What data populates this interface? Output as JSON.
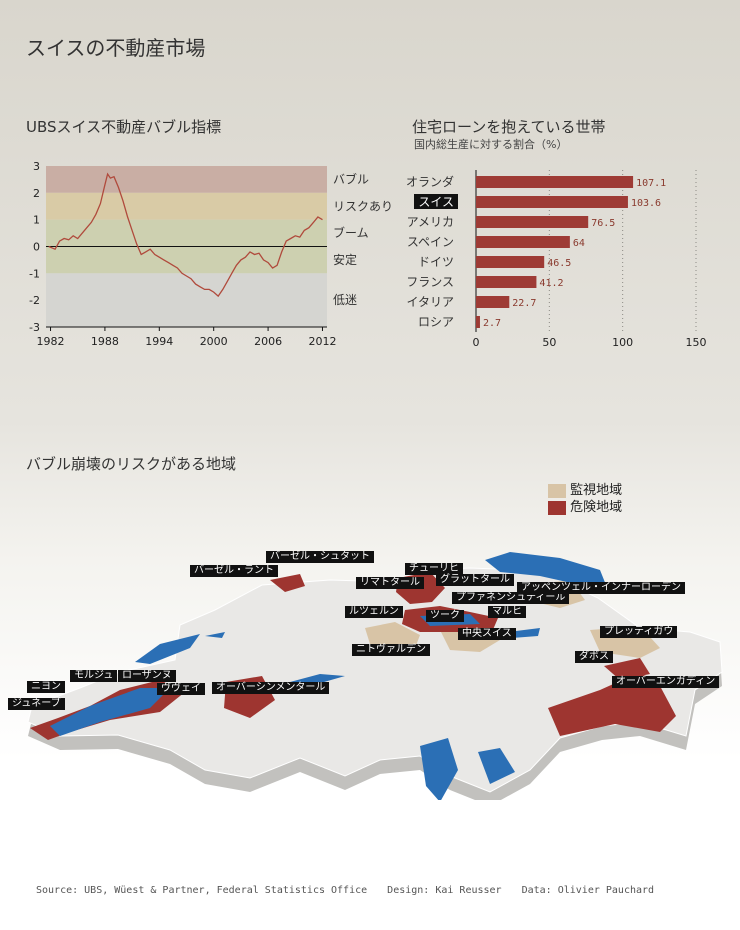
{
  "title": "スイスの不動産市場",
  "colors": {
    "line": "#b04a3c",
    "bar": "#9e3b35",
    "danger": "#9e3530",
    "watch": "#d8c4a6",
    "water": "#2b6fb5",
    "land": "#e9e8e6"
  },
  "chart_data": [
    {
      "type": "line",
      "title": "UBSスイス不動産バブル指標",
      "ylim": [
        -3,
        3
      ],
      "yticks": [
        "3",
        "2",
        "1",
        "0",
        "-1",
        "-2",
        "-3"
      ],
      "xlim": [
        1981.5,
        2012.5
      ],
      "xticks": [
        "1982",
        "1988",
        "1994",
        "2000",
        "2006",
        "2012"
      ],
      "zones": [
        {
          "label": "バブル",
          "from": 2,
          "to": 3,
          "color": "#c9aea4"
        },
        {
          "label": "リスクあり",
          "from": 1,
          "to": 2,
          "color": "#d9cba6"
        },
        {
          "label": "ブーム",
          "from": 0,
          "to": 1,
          "color": "#cdd0b0"
        },
        {
          "label": "安定",
          "from": -1,
          "to": 0,
          "color": "#cdd0b0"
        },
        {
          "label": "低迷",
          "from": -3,
          "to": -1,
          "color": "#d5d5d1"
        }
      ],
      "series": [
        {
          "x": [
            1981.8,
            1982.5,
            1983,
            1983.5,
            1984,
            1984.5,
            1985,
            1985.5,
            1986,
            1986.5,
            1987,
            1987.5,
            1988,
            1988.3,
            1988.6,
            1989,
            1989.5,
            1990,
            1990.5,
            1991,
            1991.5,
            1992,
            1992.5,
            1993,
            1993.5,
            1994,
            1994.5,
            1995,
            1995.5,
            1996,
            1996.5,
            1997,
            1997.5,
            1998,
            1998.5,
            1999,
            1999.5,
            2000,
            2000.5,
            2001,
            2001.5,
            2002,
            2002.5,
            2003,
            2003.5,
            2004,
            2004.5,
            2005,
            2005.5,
            2006,
            2006.5,
            2007,
            2007.5,
            2008,
            2008.5,
            2009,
            2009.5,
            2010,
            2010.5,
            2011,
            2011.5,
            2012
          ],
          "y": [
            0,
            -0.1,
            0.2,
            0.3,
            0.25,
            0.4,
            0.3,
            0.5,
            0.7,
            0.9,
            1.2,
            1.6,
            2.3,
            2.7,
            2.55,
            2.6,
            2.2,
            1.7,
            1.1,
            0.6,
            0.1,
            -0.3,
            -0.2,
            -0.1,
            -0.3,
            -0.4,
            -0.5,
            -0.6,
            -0.7,
            -0.8,
            -1.0,
            -1.1,
            -1.2,
            -1.4,
            -1.5,
            -1.6,
            -1.6,
            -1.7,
            -1.85,
            -1.6,
            -1.3,
            -1.0,
            -0.7,
            -0.5,
            -0.4,
            -0.2,
            -0.3,
            -0.25,
            -0.5,
            -0.6,
            -0.8,
            -0.7,
            -0.2,
            0.2,
            0.3,
            0.4,
            0.35,
            0.6,
            0.7,
            0.9,
            1.1,
            1.0
          ]
        }
      ]
    },
    {
      "type": "bar",
      "title": "住宅ローンを抱えている世帯",
      "subtitle": "国内総生産に対する割合（%）",
      "categories": [
        "オランダ",
        "スイス",
        "アメリカ",
        "スペイン",
        "ドイツ",
        "フランス",
        "イタリア",
        "ロシア"
      ],
      "values": [
        107.1,
        103.6,
        76.5,
        64,
        46.5,
        41.2,
        22.7,
        2.7
      ],
      "value_labels": [
        "107.1",
        "103.6",
        "76.5",
        "64",
        "46.5",
        "41.2",
        "22.7",
        "2.7"
      ],
      "highlight": "スイス",
      "xlim": [
        0,
        150
      ],
      "xticks": [
        "0",
        "50",
        "100",
        "150"
      ]
    }
  ],
  "map": {
    "title": "バブル崩壊のリスクがある地域",
    "legend": [
      {
        "label": "監視地域",
        "color": "#d8c4a6"
      },
      {
        "label": "危険地域",
        "color": "#9e3530"
      }
    ],
    "labels": [
      "バーゼル・シュタット",
      "バーゼル・ラント",
      "チューリヒ",
      "リマトタール",
      "グラットタール",
      "プファネンシュティール",
      "アッペンツェル・インナーローデン",
      "ルツェルン",
      "ツーク",
      "マルヒ",
      "ニトヴァルデン",
      "中央スイス",
      "プレッティガウ",
      "ダボス",
      "オーバーエンガディン",
      "ニヨン",
      "モルジュ",
      "ローザンヌ",
      "ヴヴェイ",
      "ジュネーブ",
      "オーバーシンメンタール"
    ]
  },
  "footer": {
    "source": "Source: UBS, Wüest & Partner, Federal Statistics Office",
    "design": "Design: Kai Reusser",
    "data": "Data: Olivier Pauchard"
  }
}
